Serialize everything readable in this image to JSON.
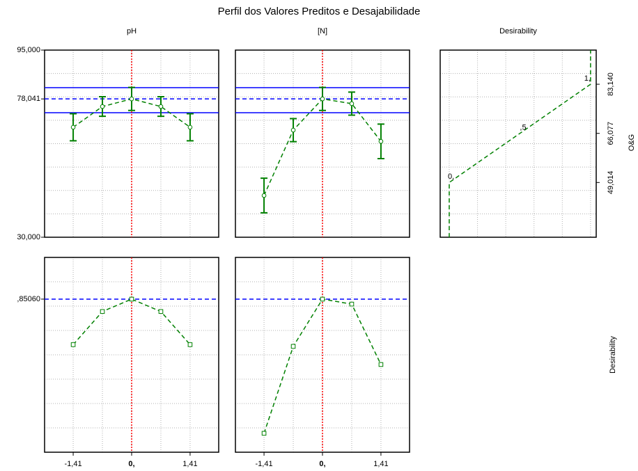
{
  "title": "Perfil dos Valores Preditos e Desajabilidade",
  "row_labels": [
    "O&G",
    "Desirability"
  ],
  "chart_data": [
    {
      "type": "line",
      "title": "pH",
      "x": [
        -1.41,
        -0.705,
        0,
        0.705,
        1.41
      ],
      "xlim": [
        -2.1,
        2.1
      ],
      "ylim": [
        30,
        95
      ],
      "yticks": [
        {
          "value": 95,
          "label": "95,000"
        },
        {
          "value": 78.041,
          "label": "78,041"
        },
        {
          "value": 30,
          "label": "30,000"
        }
      ],
      "series": [
        {
          "color": "#008000",
          "marker": "circle",
          "values": [
            68.2,
            75.4,
            78.041,
            75.4,
            68.2
          ],
          "errors": [
            4.7,
            3.4,
            4.0,
            3.4,
            4.7
          ]
        }
      ],
      "ref_lines": [
        {
          "value": 81.95,
          "style": "solid"
        },
        {
          "value": 78.041,
          "style": "dashed"
        },
        {
          "value": 73.25,
          "style": "solid"
        }
      ],
      "ref_color": "#0000ff",
      "current_x": 0,
      "current_color": "#ff0000",
      "grid": true
    },
    {
      "type": "line",
      "title": "[N]",
      "x": [
        -1.41,
        -0.705,
        0,
        0.705,
        1.41
      ],
      "xlim": [
        -2.1,
        2.1
      ],
      "ylim": [
        30,
        95
      ],
      "series": [
        {
          "color": "#008000",
          "marker": "circle",
          "values": [
            44.5,
            67.2,
            78.041,
            76.4,
            63.3
          ],
          "errors": [
            6.0,
            4.0,
            4.0,
            4.0,
            6.0
          ]
        }
      ],
      "ref_lines": [
        {
          "value": 81.95,
          "style": "solid"
        },
        {
          "value": 78.041,
          "style": "dashed"
        },
        {
          "value": 73.25,
          "style": "solid"
        }
      ],
      "ref_color": "#0000ff",
      "current_x": 0,
      "current_color": "#ff0000",
      "grid": true
    },
    {
      "type": "desirability",
      "title": "Desirability",
      "x": [
        0,
        0,
        0.5,
        1,
        1
      ],
      "xlim": [
        -0.064,
        1.04
      ],
      "ylim": [
        30,
        95
      ],
      "yticks": [
        {
          "value": 83.14,
          "label": "83,140"
        },
        {
          "value": 66.077,
          "label": "66,077"
        },
        {
          "value": 49.014,
          "label": "49,014"
        }
      ],
      "x_value_labels": [
        null,
        "0,",
        ",5",
        "1,",
        null
      ],
      "series": [
        {
          "color": "#008000",
          "values": [
            30,
            49.014,
            66.077,
            83.14,
            95
          ]
        }
      ],
      "grid": true
    },
    {
      "type": "line",
      "x": [
        -1.41,
        -0.705,
        0,
        0.705,
        1.41
      ],
      "xlim": [
        -2.1,
        2.1
      ],
      "ylim": [
        -0.12,
        1.115
      ],
      "xticks": [
        {
          "value": -1.41,
          "label": "-1,41"
        },
        {
          "value": 0,
          "label": "0,"
        },
        {
          "value": 1.41,
          "label": "1,41"
        }
      ],
      "yticks": [
        {
          "value": 0.8506,
          "label": ",85060"
        }
      ],
      "series": [
        {
          "color": "#008000",
          "marker": "square",
          "values": [
            0.562,
            0.772,
            0.8506,
            0.772,
            0.562
          ]
        }
      ],
      "ref_lines": [
        {
          "value": 0.8506,
          "style": "dashed"
        }
      ],
      "ref_color": "#0000ff",
      "current_x": 0,
      "current_color": "#ff0000",
      "grid": true
    },
    {
      "type": "line",
      "x": [
        -1.41,
        -0.705,
        0,
        0.705,
        1.41
      ],
      "xlim": [
        -2.1,
        2.1
      ],
      "ylim": [
        -0.12,
        1.115
      ],
      "xticks": [
        {
          "value": -1.41,
          "label": "-1,41"
        },
        {
          "value": 0,
          "label": "0,"
        },
        {
          "value": 1.41,
          "label": "1,41"
        }
      ],
      "series": [
        {
          "color": "#008000",
          "marker": "square",
          "values": [
            0,
            0.551,
            0.8506,
            0.819,
            0.436
          ]
        }
      ],
      "ref_lines": [
        {
          "value": 0.8506,
          "style": "dashed"
        }
      ],
      "ref_color": "#0000ff",
      "current_x": 0,
      "current_color": "#ff0000",
      "grid": true
    }
  ]
}
